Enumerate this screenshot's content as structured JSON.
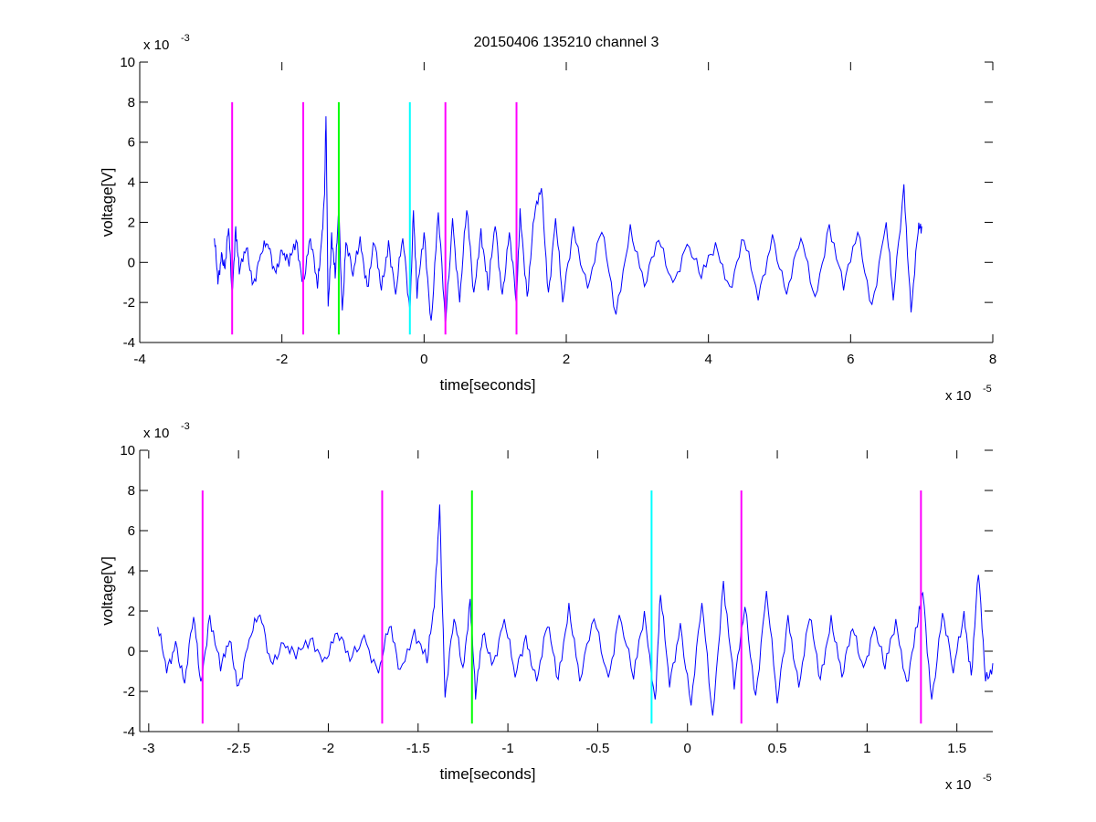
{
  "figure": {
    "title": "20150406 135210 channel 3",
    "colors": {
      "signal": "#0000ff",
      "magenta": "#ff00ff",
      "green": "#00ff00",
      "cyan": "#00ffff",
      "axes": "#000000"
    }
  },
  "chart_data": [
    {
      "type": "line",
      "title": "20150406 135210 channel 3",
      "xlabel": "time[seconds]",
      "ylabel": "voltage[V]",
      "x_multiplier": {
        "base": "x 10",
        "exp": "-5"
      },
      "y_multiplier": {
        "base": "x 10",
        "exp": "-3"
      },
      "xlim": [
        -4,
        8
      ],
      "ylim": [
        -4,
        10
      ],
      "xticks": [
        -4,
        -2,
        0,
        2,
        4,
        6,
        8
      ],
      "xtick_labels": [
        "-4",
        "-2",
        "0",
        "2",
        "4",
        "6",
        "8"
      ],
      "yticks": [
        -4,
        -2,
        0,
        2,
        4,
        6,
        8,
        10
      ],
      "ytick_labels": [
        "-4",
        "-2",
        "0",
        "2",
        "4",
        "6",
        "8",
        "10"
      ],
      "grid": false,
      "legend": "none",
      "signal": {
        "color": "#0000ff",
        "x_range": [
          -2.95,
          7.0
        ],
        "points": [
          [
            -2.95,
            1.2
          ],
          [
            -2.9,
            -1.1
          ],
          [
            -2.85,
            0.5
          ],
          [
            -2.8,
            -0.3
          ],
          [
            -2.75,
            1.7
          ],
          [
            -2.7,
            -1.5
          ],
          [
            -2.65,
            1.8
          ],
          [
            -2.6,
            -0.6
          ],
          [
            -2.5,
            0.7
          ],
          [
            -2.4,
            -1.0
          ],
          [
            -2.3,
            0.4
          ],
          [
            -2.2,
            0.9
          ],
          [
            -2.1,
            -0.4
          ],
          [
            -2.0,
            0.6
          ],
          [
            -1.9,
            -0.2
          ],
          [
            -1.8,
            1.1
          ],
          [
            -1.7,
            -0.9
          ],
          [
            -1.6,
            1.2
          ],
          [
            -1.5,
            -1.3
          ],
          [
            -1.45,
            0.8
          ],
          [
            -1.4,
            3.4
          ],
          [
            -1.38,
            7.3
          ],
          [
            -1.35,
            -2.2
          ],
          [
            -1.3,
            1.5
          ],
          [
            -1.25,
            -0.8
          ],
          [
            -1.2,
            2.6
          ],
          [
            -1.15,
            -2.4
          ],
          [
            -1.1,
            1.0
          ],
          [
            -1.0,
            -0.7
          ],
          [
            -0.9,
            1.3
          ],
          [
            -0.8,
            -1.2
          ],
          [
            -0.7,
            0.9
          ],
          [
            -0.6,
            -1.4
          ],
          [
            -0.5,
            1.1
          ],
          [
            -0.4,
            -1.6
          ],
          [
            -0.3,
            1.2
          ],
          [
            -0.2,
            -2.4
          ],
          [
            -0.15,
            2.6
          ],
          [
            -0.1,
            -1.8
          ],
          [
            0.0,
            1.5
          ],
          [
            0.1,
            -2.9
          ],
          [
            0.2,
            2.5
          ],
          [
            0.3,
            -3.2
          ],
          [
            0.4,
            2.2
          ],
          [
            0.5,
            -2.0
          ],
          [
            0.6,
            2.6
          ],
          [
            0.7,
            -1.5
          ],
          [
            0.8,
            1.7
          ],
          [
            0.9,
            -1.4
          ],
          [
            1.0,
            1.8
          ],
          [
            1.1,
            -1.6
          ],
          [
            1.2,
            1.5
          ],
          [
            1.3,
            -2.2
          ],
          [
            1.35,
            2.7
          ],
          [
            1.45,
            -1.7
          ],
          [
            1.55,
            2.2
          ],
          [
            1.65,
            3.7
          ],
          [
            1.75,
            -1.5
          ],
          [
            1.85,
            2.2
          ],
          [
            1.95,
            -2.0
          ],
          [
            2.1,
            1.8
          ],
          [
            2.3,
            -1.3
          ],
          [
            2.5,
            1.5
          ],
          [
            2.7,
            -2.6
          ],
          [
            2.9,
            1.9
          ],
          [
            3.1,
            -1.2
          ],
          [
            3.3,
            1.1
          ],
          [
            3.5,
            -1.0
          ],
          [
            3.7,
            0.9
          ],
          [
            3.9,
            -0.8
          ],
          [
            4.1,
            1.0
          ],
          [
            4.3,
            -1.2
          ],
          [
            4.5,
            1.1
          ],
          [
            4.7,
            -1.9
          ],
          [
            4.9,
            1.4
          ],
          [
            5.1,
            -1.6
          ],
          [
            5.3,
            1.2
          ],
          [
            5.5,
            -1.7
          ],
          [
            5.7,
            1.9
          ],
          [
            5.9,
            -1.4
          ],
          [
            6.1,
            1.5
          ],
          [
            6.3,
            -2.1
          ],
          [
            6.5,
            2.0
          ],
          [
            6.6,
            -1.9
          ],
          [
            6.75,
            3.9
          ],
          [
            6.85,
            -2.5
          ],
          [
            6.95,
            1.5
          ],
          [
            7.0,
            1.8
          ]
        ]
      },
      "markers": [
        {
          "x": -2.7,
          "y_range": [
            -3.6,
            8
          ],
          "color": "#ff00ff"
        },
        {
          "x": -1.7,
          "y_range": [
            -3.6,
            8
          ],
          "color": "#ff00ff"
        },
        {
          "x": -1.2,
          "y_range": [
            -3.6,
            8
          ],
          "color": "#00ff00"
        },
        {
          "x": -0.2,
          "y_range": [
            -3.6,
            8
          ],
          "color": "#00ffff"
        },
        {
          "x": 0.3,
          "y_range": [
            -3.6,
            8
          ],
          "color": "#ff00ff"
        },
        {
          "x": 1.3,
          "y_range": [
            -3.6,
            8
          ],
          "color": "#ff00ff"
        }
      ]
    },
    {
      "type": "line",
      "title": "",
      "xlabel": "time[seconds]",
      "ylabel": "voltage[V]",
      "x_multiplier": {
        "base": "x 10",
        "exp": "-5"
      },
      "y_multiplier": {
        "base": "x 10",
        "exp": "-3"
      },
      "xlim": [
        -3.05,
        1.7
      ],
      "ylim": [
        -4,
        10
      ],
      "xticks": [
        -3,
        -2.5,
        -2,
        -1.5,
        -1,
        -0.5,
        0,
        0.5,
        1,
        1.5
      ],
      "xtick_labels": [
        "-3",
        "-2.5",
        "-2",
        "-1.5",
        "-1",
        "-0.5",
        "0",
        "0.5",
        "1",
        "1.5"
      ],
      "yticks": [
        -4,
        -2,
        0,
        2,
        4,
        6,
        8,
        10
      ],
      "ytick_labels": [
        "-4",
        "-2",
        "0",
        "2",
        "4",
        "6",
        "8",
        "10"
      ],
      "grid": false,
      "legend": "none",
      "signal": {
        "color": "#0000ff",
        "x_range": [
          -2.95,
          1.7
        ],
        "points": [
          [
            -2.95,
            1.2
          ],
          [
            -2.9,
            -1.1
          ],
          [
            -2.85,
            0.5
          ],
          [
            -2.8,
            -1.6
          ],
          [
            -2.75,
            1.7
          ],
          [
            -2.71,
            -1.5
          ],
          [
            -2.66,
            1.8
          ],
          [
            -2.6,
            -1.0
          ],
          [
            -2.55,
            0.5
          ],
          [
            -2.5,
            -1.7
          ],
          [
            -2.44,
            0.6
          ],
          [
            -2.38,
            1.8
          ],
          [
            -2.32,
            -0.5
          ],
          [
            -2.25,
            0.4
          ],
          [
            -2.18,
            -0.4
          ],
          [
            -2.1,
            0.6
          ],
          [
            -2.02,
            -0.3
          ],
          [
            -1.95,
            0.9
          ],
          [
            -1.88,
            -0.5
          ],
          [
            -1.8,
            0.8
          ],
          [
            -1.72,
            -1.1
          ],
          [
            -1.66,
            1.2
          ],
          [
            -1.6,
            -0.9
          ],
          [
            -1.52,
            1.1
          ],
          [
            -1.45,
            -0.6
          ],
          [
            -1.41,
            2.2
          ],
          [
            -1.38,
            7.3
          ],
          [
            -1.35,
            -2.3
          ],
          [
            -1.3,
            1.6
          ],
          [
            -1.25,
            -0.8
          ],
          [
            -1.21,
            2.6
          ],
          [
            -1.18,
            -2.4
          ],
          [
            -1.14,
            0.8
          ],
          [
            -1.08,
            -0.5
          ],
          [
            -1.02,
            1.6
          ],
          [
            -0.96,
            -1.3
          ],
          [
            -0.9,
            0.8
          ],
          [
            -0.84,
            -1.5
          ],
          [
            -0.78,
            1.2
          ],
          [
            -0.72,
            -1.4
          ],
          [
            -0.66,
            2.4
          ],
          [
            -0.6,
            -1.5
          ],
          [
            -0.52,
            1.6
          ],
          [
            -0.44,
            -1.3
          ],
          [
            -0.38,
            1.8
          ],
          [
            -0.3,
            -1.4
          ],
          [
            -0.24,
            2.0
          ],
          [
            -0.18,
            -2.4
          ],
          [
            -0.15,
            2.8
          ],
          [
            -0.1,
            -1.8
          ],
          [
            -0.04,
            1.4
          ],
          [
            0.02,
            -2.7
          ],
          [
            0.08,
            2.4
          ],
          [
            0.14,
            -3.2
          ],
          [
            0.2,
            3.5
          ],
          [
            0.26,
            -1.9
          ],
          [
            0.32,
            2.2
          ],
          [
            0.38,
            -2.2
          ],
          [
            0.44,
            3.0
          ],
          [
            0.5,
            -2.6
          ],
          [
            0.56,
            1.8
          ],
          [
            0.62,
            -1.8
          ],
          [
            0.68,
            1.6
          ],
          [
            0.74,
            -1.4
          ],
          [
            0.8,
            1.8
          ],
          [
            0.86,
            -1.3
          ],
          [
            0.92,
            1.1
          ],
          [
            0.98,
            -0.8
          ],
          [
            1.04,
            1.2
          ],
          [
            1.1,
            -0.9
          ],
          [
            1.16,
            1.6
          ],
          [
            1.22,
            -1.5
          ],
          [
            1.28,
            1.2
          ],
          [
            1.31,
            2.9
          ],
          [
            1.36,
            -2.4
          ],
          [
            1.42,
            1.9
          ],
          [
            1.48,
            -1.1
          ],
          [
            1.54,
            2.0
          ],
          [
            1.58,
            -1.2
          ],
          [
            1.62,
            3.8
          ],
          [
            1.66,
            -1.5
          ],
          [
            1.7,
            -0.6
          ]
        ]
      },
      "markers": [
        {
          "x": -2.7,
          "y_range": [
            -3.6,
            8
          ],
          "color": "#ff00ff"
        },
        {
          "x": -1.7,
          "y_range": [
            -3.6,
            8
          ],
          "color": "#ff00ff"
        },
        {
          "x": -1.2,
          "y_range": [
            -3.6,
            8
          ],
          "color": "#00ff00"
        },
        {
          "x": -0.2,
          "y_range": [
            -3.6,
            8
          ],
          "color": "#00ffff"
        },
        {
          "x": 0.3,
          "y_range": [
            -3.6,
            8
          ],
          "color": "#ff00ff"
        },
        {
          "x": 1.3,
          "y_range": [
            -3.6,
            8
          ],
          "color": "#ff00ff"
        }
      ]
    }
  ]
}
